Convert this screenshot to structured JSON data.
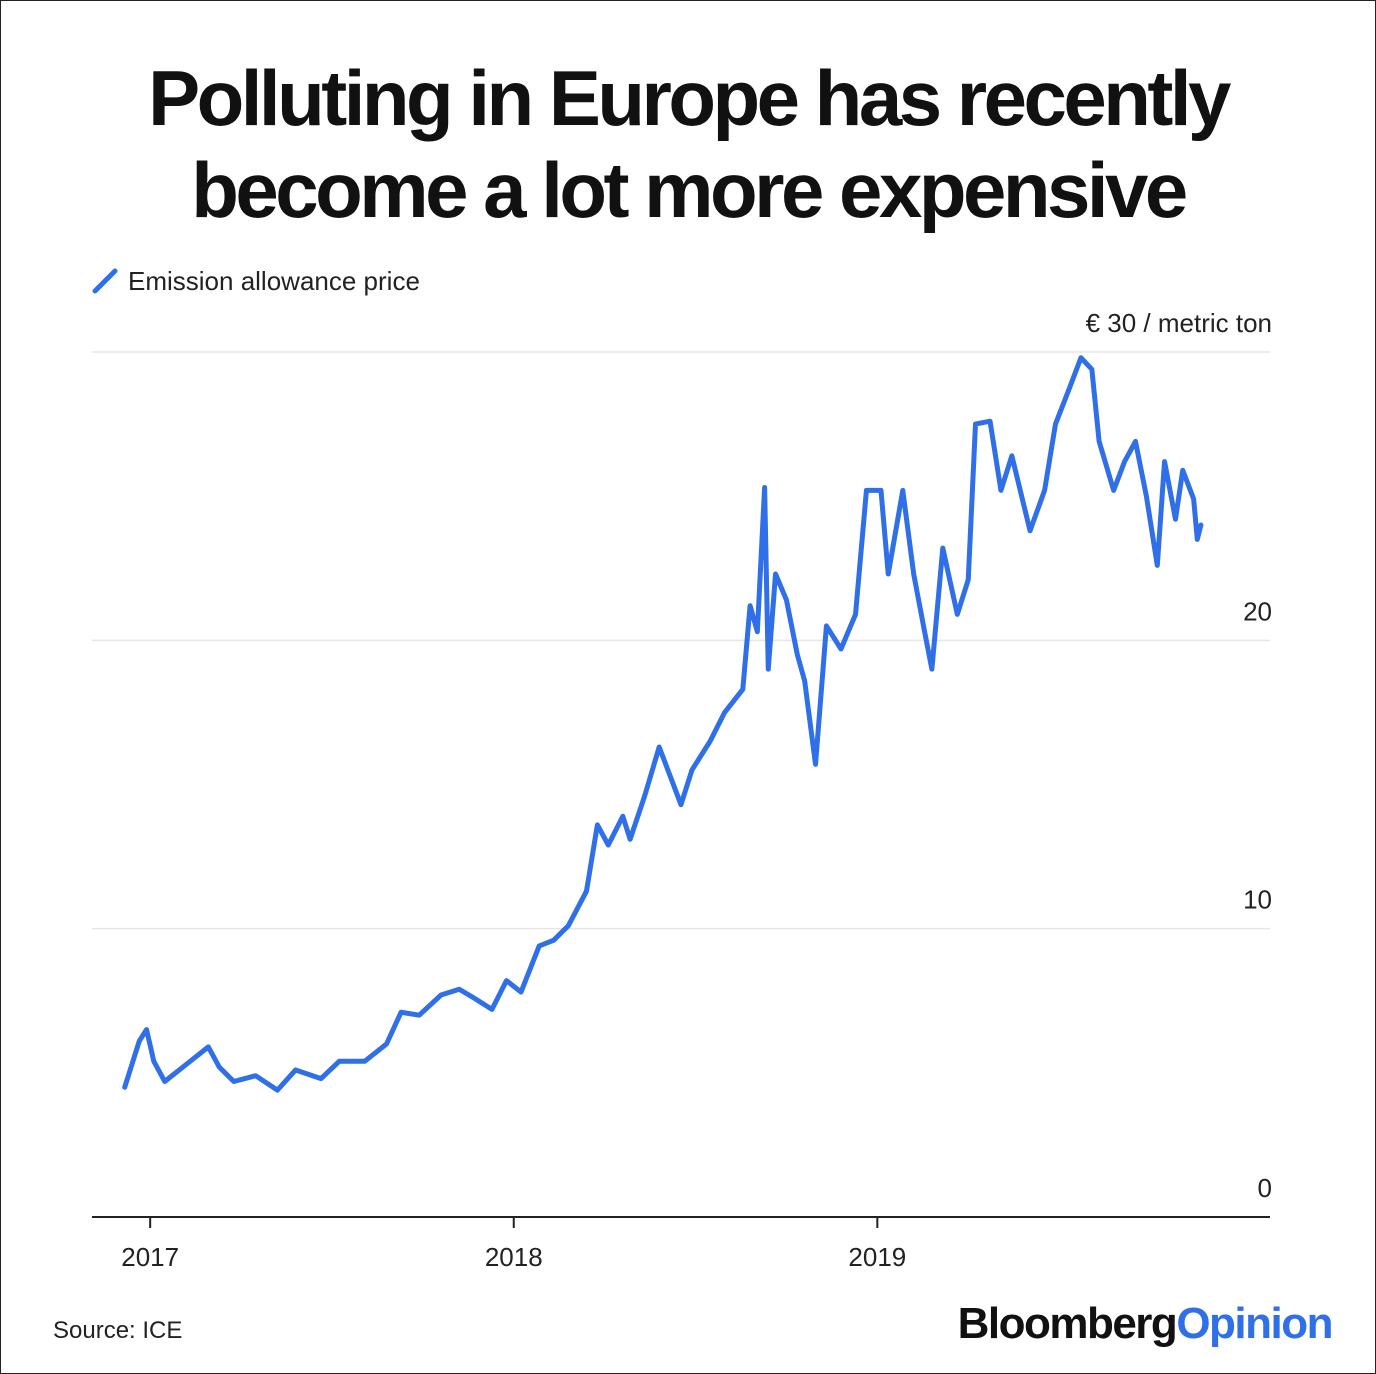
{
  "chart_data": {
    "type": "line",
    "title": "Polluting in Europe has recently become a lot more expensive",
    "source": "Source: ICE",
    "logo": {
      "brand": "Bloomberg",
      "product": "Opinion"
    },
    "xlim": [
      2016.84,
      2020.08
    ],
    "xticks": [
      2017,
      2018,
      2019
    ],
    "ylim": [
      0,
      30
    ],
    "yticks": [
      0,
      10,
      20,
      {
        "value": 30,
        "label": "€ 30 / metric ton"
      }
    ],
    "grid": true,
    "x": [
      2016.93,
      2016.97,
      2016.99,
      2017.01,
      2017.04,
      2017.1,
      2017.16,
      2017.19,
      2017.23,
      2017.29,
      2017.35,
      2017.4,
      2017.47,
      2017.52,
      2017.59,
      2017.65,
      2017.69,
      2017.74,
      2017.8,
      2017.85,
      2017.89,
      2017.94,
      2017.98,
      2018.02,
      2018.07,
      2018.11,
      2018.15,
      2018.2,
      2018.23,
      2018.26,
      2018.3,
      2018.32,
      2018.36,
      2018.4,
      2018.43,
      2018.46,
      2018.49,
      2018.54,
      2018.58,
      2018.63,
      2018.65,
      2018.67,
      2018.69,
      2018.7,
      2018.72,
      2018.75,
      2018.78,
      2018.8,
      2018.83,
      2018.86,
      2018.9,
      2018.94,
      2018.97,
      2019.01,
      2019.03,
      2019.07,
      2019.1,
      2019.13,
      2019.15,
      2019.18,
      2019.22,
      2019.25,
      2019.27,
      2019.31,
      2019.34,
      2019.37,
      2019.42,
      2019.46,
      2019.49,
      2019.53,
      2019.56,
      2019.59,
      2019.61,
      2019.65,
      2019.68,
      2019.71,
      2019.74,
      2019.77,
      2019.79,
      2019.82,
      2019.84,
      2019.87,
      2019.88,
      2019.89
    ],
    "series": [
      {
        "name": "Emission allowance price",
        "color": "#2f6fe8",
        "values": [
          4.5,
          6.1,
          6.5,
          5.4,
          4.7,
          5.3,
          5.9,
          5.2,
          4.7,
          4.9,
          4.4,
          5.1,
          4.8,
          5.4,
          5.4,
          6.0,
          7.1,
          7.0,
          7.7,
          7.9,
          7.6,
          7.2,
          8.2,
          7.8,
          9.4,
          9.6,
          10.1,
          11.3,
          13.6,
          12.9,
          13.9,
          13.1,
          14.6,
          16.3,
          15.3,
          14.3,
          15.5,
          16.5,
          17.5,
          18.3,
          21.2,
          20.3,
          25.3,
          19.0,
          22.3,
          21.4,
          19.5,
          18.6,
          15.7,
          20.5,
          19.7,
          20.9,
          25.2,
          25.2,
          22.3,
          25.2,
          22.3,
          20.3,
          19.0,
          23.2,
          20.9,
          22.1,
          27.5,
          27.6,
          25.2,
          26.4,
          23.8,
          25.2,
          27.5,
          28.8,
          29.8,
          29.4,
          26.9,
          25.2,
          26.2,
          26.9,
          25.0,
          22.6,
          26.2,
          24.2,
          25.9,
          24.9,
          23.5,
          24.0
        ]
      }
    ]
  }
}
